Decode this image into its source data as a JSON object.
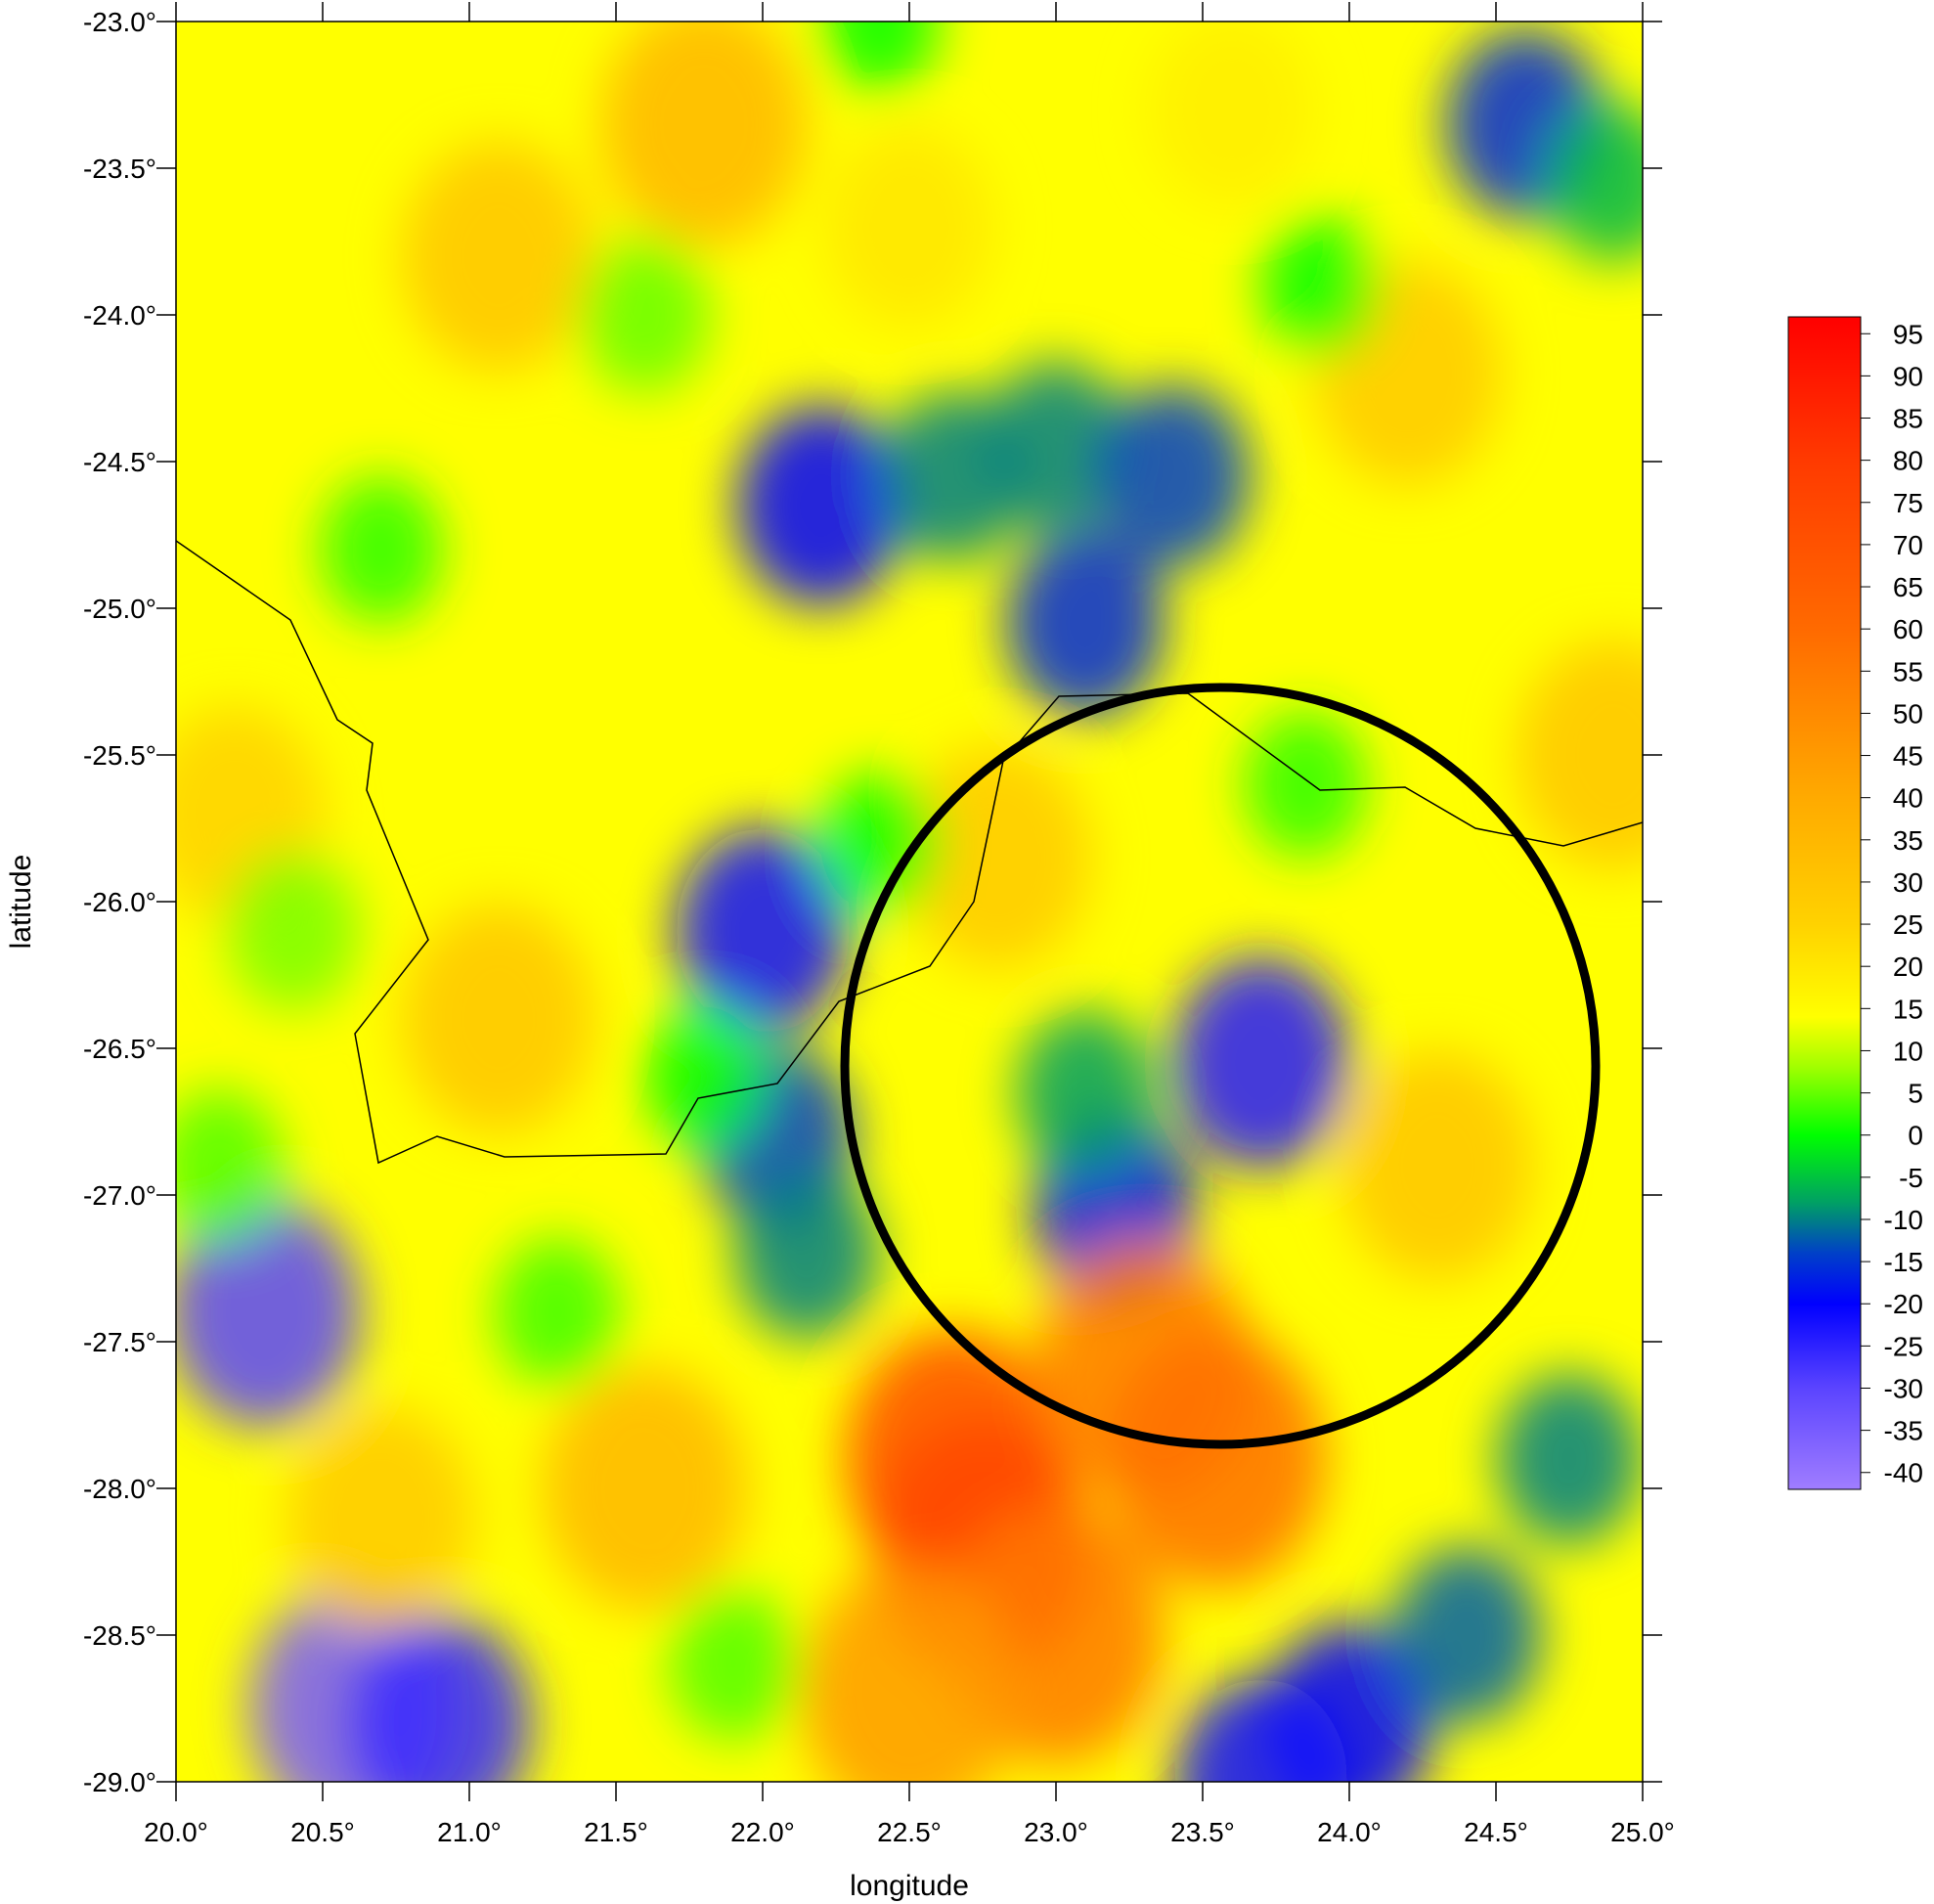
{
  "chart_data": {
    "type": "heatmap",
    "xlabel": "longitude",
    "ylabel": "latitude",
    "xlim": [
      20.0,
      25.0
    ],
    "ylim": [
      -29.0,
      -23.0
    ],
    "x_ticks": [
      "20.0°",
      "20.5°",
      "21.0°",
      "21.5°",
      "22.0°",
      "22.5°",
      "23.0°",
      "23.5°",
      "24.0°",
      "24.5°",
      "25.0°"
    ],
    "y_ticks": [
      "-23.0°",
      "-23.5°",
      "-24.0°",
      "-24.5°",
      "-25.0°",
      "-25.5°",
      "-26.0°",
      "-26.5°",
      "-27.0°",
      "-27.5°",
      "-28.0°",
      "-28.5°",
      "-29.0°"
    ],
    "colorbar": {
      "range": [
        -42,
        97
      ],
      "ticks": [
        "95",
        "90",
        "85",
        "80",
        "75",
        "70",
        "65",
        "60",
        "55",
        "50",
        "45",
        "40",
        "35",
        "30",
        "25",
        "20",
        "15",
        "10",
        "5",
        "0",
        "-5",
        "-10",
        "-15",
        "-20",
        "-25",
        "-30",
        "-35",
        "-40"
      ],
      "stops": [
        {
          "value": -42,
          "color": "#a07dff"
        },
        {
          "value": -30,
          "color": "#5b44ff"
        },
        {
          "value": -20,
          "color": "#0000ff"
        },
        {
          "value": -14,
          "color": "#0040c8"
        },
        {
          "value": -8,
          "color": "#00a064"
        },
        {
          "value": 0,
          "color": "#00ff00"
        },
        {
          "value": 8,
          "color": "#a0ff00"
        },
        {
          "value": 14,
          "color": "#ffff00"
        },
        {
          "value": 25,
          "color": "#ffd200"
        },
        {
          "value": 40,
          "color": "#ffaa00"
        },
        {
          "value": 60,
          "color": "#ff6a00"
        },
        {
          "value": 80,
          "color": "#ff3a00"
        },
        {
          "value": 97,
          "color": "#ff0000"
        }
      ]
    },
    "anomalies": [
      {
        "lon": 22.0,
        "lat": -26.1,
        "value": -22
      },
      {
        "lon": 22.05,
        "lat": -26.8,
        "value": -14
      },
      {
        "lon": 22.15,
        "lat": -27.2,
        "value": -10
      },
      {
        "lon": 22.2,
        "lat": -24.65,
        "value": -20
      },
      {
        "lon": 22.65,
        "lat": -24.55,
        "value": -10
      },
      {
        "lon": 23.0,
        "lat": -24.45,
        "value": -10
      },
      {
        "lon": 23.4,
        "lat": -24.55,
        "value": -14
      },
      {
        "lon": 23.1,
        "lat": -25.05,
        "value": -16
      },
      {
        "lon": 23.7,
        "lat": -26.55,
        "value": -24
      },
      {
        "lon": 23.2,
        "lat": -27.05,
        "value": -18
      },
      {
        "lon": 23.1,
        "lat": -26.65,
        "value": -8
      },
      {
        "lon": 24.6,
        "lat": -23.35,
        "value": -16
      },
      {
        "lon": 24.9,
        "lat": -23.55,
        "value": -6
      },
      {
        "lon": 20.3,
        "lat": -27.4,
        "value": -30
      },
      {
        "lon": 20.6,
        "lat": -28.75,
        "value": -35
      },
      {
        "lon": 20.9,
        "lat": -28.8,
        "value": -26
      },
      {
        "lon": 24.0,
        "lat": -28.8,
        "value": -20
      },
      {
        "lon": 23.7,
        "lat": -29.0,
        "value": -22
      },
      {
        "lon": 24.4,
        "lat": -28.5,
        "value": -12
      },
      {
        "lon": 24.75,
        "lat": -27.9,
        "value": -10
      },
      {
        "lon": 22.75,
        "lat": -28.2,
        "value": 85
      },
      {
        "lon": 22.65,
        "lat": -27.9,
        "value": 72
      },
      {
        "lon": 23.3,
        "lat": -27.6,
        "value": 55
      },
      {
        "lon": 23.55,
        "lat": -27.9,
        "value": 58
      },
      {
        "lon": 23.0,
        "lat": -28.5,
        "value": 55
      },
      {
        "lon": 22.5,
        "lat": -28.7,
        "value": 45
      },
      {
        "lon": 21.8,
        "lat": -23.35,
        "value": 35
      },
      {
        "lon": 21.1,
        "lat": -23.8,
        "value": 30
      },
      {
        "lon": 21.1,
        "lat": -26.4,
        "value": 30
      },
      {
        "lon": 24.3,
        "lat": -26.9,
        "value": 30
      },
      {
        "lon": 24.2,
        "lat": -24.2,
        "value": 28
      },
      {
        "lon": 20.2,
        "lat": -25.7,
        "value": 25
      },
      {
        "lon": 21.6,
        "lat": -28.0,
        "value": 35
      },
      {
        "lon": 20.7,
        "lat": -28.1,
        "value": 28
      },
      {
        "lon": 22.8,
        "lat": -25.85,
        "value": 28
      },
      {
        "lon": 24.9,
        "lat": -25.5,
        "value": 30
      },
      {
        "lon": 22.5,
        "lat": -23.7,
        "value": 20
      },
      {
        "lon": 23.6,
        "lat": -23.3,
        "value": 18
      },
      {
        "lon": 20.7,
        "lat": -24.8,
        "value": 2
      },
      {
        "lon": 20.4,
        "lat": -26.1,
        "value": 6
      },
      {
        "lon": 20.15,
        "lat": -26.9,
        "value": 4
      },
      {
        "lon": 21.6,
        "lat": -24.0,
        "value": 5
      },
      {
        "lon": 21.3,
        "lat": -27.4,
        "value": 3
      },
      {
        "lon": 21.9,
        "lat": -28.6,
        "value": 4
      },
      {
        "lon": 23.85,
        "lat": -25.6,
        "value": 2
      },
      {
        "lon": 22.4,
        "lat": -25.8,
        "value": 0
      },
      {
        "lon": 22.4,
        "lat": -23.0,
        "value": 0
      },
      {
        "lon": 23.9,
        "lat": -23.9,
        "value": 0
      },
      {
        "lon": 21.8,
        "lat": -26.6,
        "value": 0
      }
    ],
    "overlays": {
      "boundary": [
        [
          20.0,
          -24.77
        ],
        [
          20.39,
          -25.04
        ],
        [
          20.55,
          -25.38
        ],
        [
          20.67,
          -25.46
        ],
        [
          20.65,
          -25.62
        ],
        [
          20.86,
          -26.13
        ],
        [
          20.61,
          -26.45
        ],
        [
          20.69,
          -26.89
        ],
        [
          20.89,
          -26.8
        ],
        [
          21.12,
          -26.87
        ],
        [
          21.67,
          -26.86
        ],
        [
          21.78,
          -26.67
        ],
        [
          22.05,
          -26.62
        ],
        [
          22.26,
          -26.34
        ],
        [
          22.57,
          -26.22
        ],
        [
          22.72,
          -26.0
        ],
        [
          22.82,
          -25.52
        ],
        [
          23.01,
          -25.3
        ],
        [
          23.45,
          -25.29
        ],
        [
          23.9,
          -25.62
        ],
        [
          24.19,
          -25.61
        ],
        [
          24.43,
          -25.75
        ],
        [
          24.73,
          -25.81
        ],
        [
          25.0,
          -25.73
        ]
      ],
      "circle": {
        "center_lon": 23.56,
        "center_lat": -26.56,
        "radius_lon": 1.28,
        "radius_lat": 1.29
      }
    }
  }
}
